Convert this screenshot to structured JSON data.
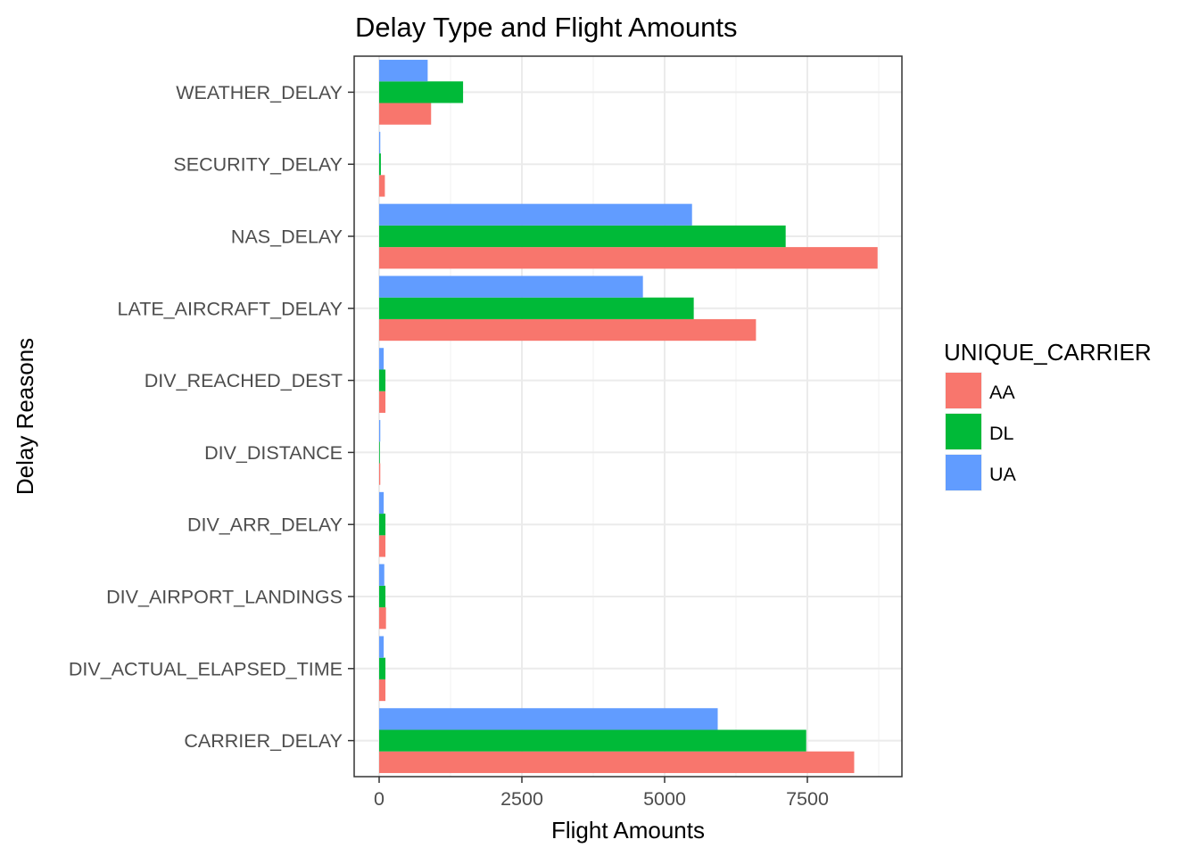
{
  "chart_data": {
    "type": "bar",
    "orientation": "horizontal",
    "title": "Delay Type and Flight Amounts",
    "xlabel": "Flight Amounts",
    "ylabel": "Delay Reasons",
    "xlim": [
      -200,
      9000
    ],
    "xticks": [
      0,
      2500,
      5000,
      7500
    ],
    "xtick_labels": [
      "0",
      "2500",
      "5000",
      "7500"
    ],
    "grid": true,
    "legend_position": "right",
    "legend_title": "UNIQUE_CARRIER",
    "categories": [
      "CARRIER_DELAY",
      "DIV_ACTUAL_ELAPSED_TIME",
      "DIV_AIRPORT_LANDINGS",
      "DIV_ARR_DELAY",
      "DIV_DISTANCE",
      "DIV_REACHED_DEST",
      "LATE_AIRCRAFT_DELAY",
      "NAS_DELAY",
      "SECURITY_DELAY",
      "WEATHER_DELAY"
    ],
    "series": [
      {
        "name": "AA",
        "color": "#F8766D",
        "values": [
          8320,
          110,
          120,
          110,
          20,
          110,
          6600,
          8730,
          100,
          910
        ]
      },
      {
        "name": "DL",
        "color": "#00BA38",
        "values": [
          7480,
          110,
          110,
          110,
          10,
          110,
          5510,
          7120,
          30,
          1470
        ]
      },
      {
        "name": "UA",
        "color": "#619CFF",
        "values": [
          5930,
          80,
          90,
          80,
          20,
          80,
          4620,
          5480,
          20,
          850
        ]
      }
    ]
  }
}
